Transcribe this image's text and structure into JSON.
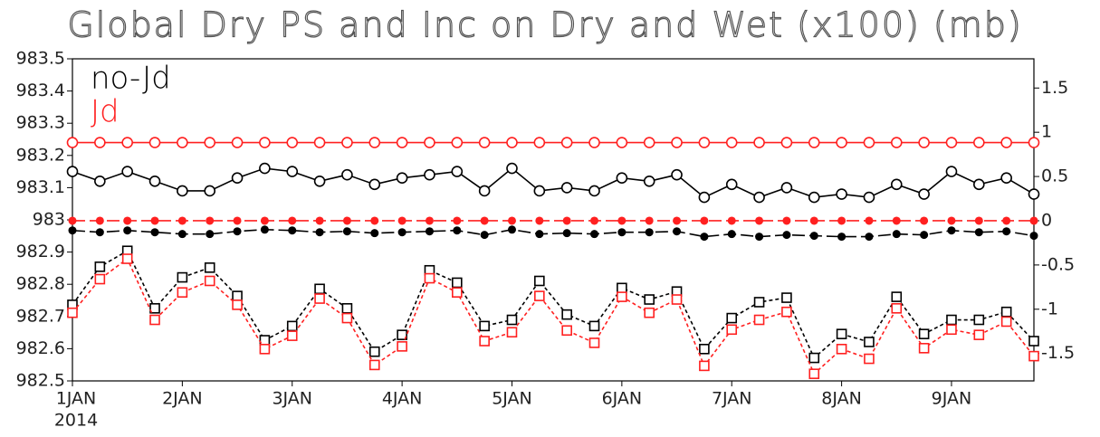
{
  "chart_data": {
    "type": "line",
    "title": "Global Dry PS and Inc on Dry and Wet (x100) (mb)",
    "categories": [
      "1JAN",
      null,
      null,
      null,
      "2JAN",
      null,
      null,
      null,
      "3JAN",
      null,
      null,
      null,
      "4JAN",
      null,
      null,
      null,
      "5JAN",
      null,
      null,
      null,
      "6JAN",
      null,
      null,
      null,
      "7JAN",
      null,
      null,
      null,
      "8JAN",
      null,
      null,
      null,
      "9JAN",
      null,
      null,
      null
    ],
    "x_sublabel": "2014",
    "legend": [
      {
        "label": "no-Jd",
        "color": "#000000"
      },
      {
        "label": "Jd",
        "color": "#ff2020"
      }
    ],
    "series": [
      {
        "color": "#000000",
        "marker": "open-circle",
        "dash": false,
        "axis": "y",
        "values": [
          983.15,
          983.12,
          983.15,
          983.12,
          983.09,
          983.09,
          983.13,
          983.16,
          983.15,
          983.12,
          983.14,
          983.11,
          983.13,
          983.14,
          983.15,
          983.09,
          983.16,
          983.09,
          983.1,
          983.09,
          983.13,
          983.12,
          983.14,
          983.07,
          983.11,
          983.07,
          983.1,
          983.07,
          983.08,
          983.07,
          983.11,
          983.08,
          983.15,
          983.11,
          983.13,
          983.08
        ]
      },
      {
        "color": "#ff2020",
        "marker": "open-circle",
        "dash": false,
        "axis": "y",
        "values": [
          983.24,
          983.24,
          983.24,
          983.24,
          983.24,
          983.24,
          983.24,
          983.24,
          983.24,
          983.24,
          983.24,
          983.24,
          983.24,
          983.24,
          983.24,
          983.24,
          983.24,
          983.24,
          983.24,
          983.24,
          983.24,
          983.24,
          983.24,
          983.24,
          983.24,
          983.24,
          983.24,
          983.24,
          983.24,
          983.24,
          983.24,
          983.24,
          983.24,
          983.24,
          983.24,
          983.24
        ]
      },
      {
        "color": "#000000",
        "marker": "filled-circle",
        "dash": true,
        "axis": "y2",
        "values": [
          -0.11,
          -0.13,
          -0.11,
          -0.13,
          -0.15,
          -0.15,
          -0.12,
          -0.1,
          -0.11,
          -0.13,
          -0.12,
          -0.14,
          -0.13,
          -0.12,
          -0.11,
          -0.16,
          -0.1,
          -0.15,
          -0.14,
          -0.15,
          -0.13,
          -0.13,
          -0.12,
          -0.18,
          -0.15,
          -0.18,
          -0.16,
          -0.17,
          -0.18,
          -0.18,
          -0.15,
          -0.16,
          -0.11,
          -0.13,
          -0.12,
          -0.17
        ]
      },
      {
        "color": "#ff2020",
        "marker": "filled-circle",
        "dash": true,
        "axis": "y2",
        "values": [
          0,
          0,
          0,
          0,
          0,
          0,
          0,
          0,
          0,
          0,
          0,
          0,
          0,
          0,
          0,
          0,
          0,
          0,
          0,
          0,
          0,
          0,
          0,
          0,
          0,
          0,
          0,
          0,
          0,
          0,
          0,
          0,
          0,
          0,
          0,
          0
        ]
      },
      {
        "color": "#000000",
        "marker": "open-square",
        "dash": true,
        "axis": "y2",
        "values": [
          -0.95,
          -0.52,
          -0.34,
          -0.99,
          -0.64,
          -0.53,
          -0.85,
          -1.35,
          -1.19,
          -0.77,
          -0.99,
          -1.48,
          -1.29,
          -0.56,
          -0.7,
          -1.19,
          -1.12,
          -0.68,
          -1.06,
          -1.19,
          -0.76,
          -0.89,
          -0.8,
          -1.45,
          -1.1,
          -0.92,
          -0.87,
          -1.55,
          -1.28,
          -1.37,
          -0.86,
          -1.28,
          -1.12,
          -1.12,
          -1.03,
          -1.36
        ]
      },
      {
        "color": "#ff2020",
        "marker": "open-square",
        "dash": true,
        "axis": "y2",
        "values": [
          -1.04,
          -0.66,
          -0.43,
          -1.12,
          -0.81,
          -0.68,
          -0.95,
          -1.45,
          -1.3,
          -0.88,
          -1.1,
          -1.63,
          -1.42,
          -0.65,
          -0.81,
          -1.36,
          -1.26,
          -0.85,
          -1.24,
          -1.38,
          -0.86,
          -1.04,
          -0.89,
          -1.64,
          -1.23,
          -1.12,
          -1.03,
          -1.73,
          -1.45,
          -1.56,
          -0.99,
          -1.44,
          -1.23,
          -1.29,
          -1.14,
          -1.53
        ]
      }
    ],
    "ylim": [
      982.5,
      983.5
    ],
    "yticks": [
      982.5,
      982.6,
      982.7,
      982.8,
      982.9,
      983,
      983.1,
      983.2,
      983.3,
      983.4,
      983.5
    ],
    "y2lim": [
      -1.81,
      1.83
    ],
    "y2ticks": [
      -1.5,
      -1,
      -0.5,
      0,
      0.5,
      1,
      1.5
    ]
  }
}
